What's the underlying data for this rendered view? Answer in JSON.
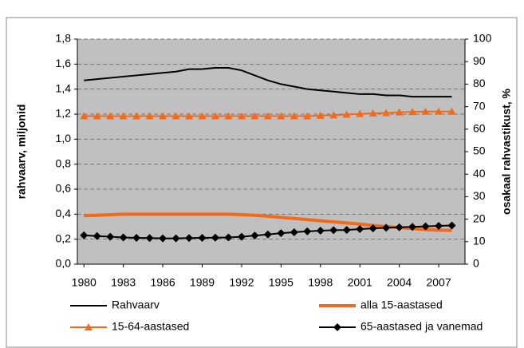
{
  "chart_data": {
    "type": "line",
    "ylabel": "rahvaarv, miljonid",
    "y2label": "osakaal rahvastikust, %",
    "x": [
      1980,
      1981,
      1982,
      1983,
      1984,
      1985,
      1986,
      1987,
      1988,
      1989,
      1990,
      1991,
      1992,
      1993,
      1994,
      1995,
      1996,
      1997,
      1998,
      1999,
      2000,
      2001,
      2002,
      2003,
      2004,
      2005,
      2006,
      2007,
      2008
    ],
    "xlim": [
      1979.5,
      2009
    ],
    "xticks": [
      1980,
      1983,
      1986,
      1989,
      1992,
      1995,
      1998,
      2001,
      2004,
      2007
    ],
    "ylim": [
      0,
      1.8
    ],
    "yticks": [
      {
        "value": 0,
        "label": "0,0"
      },
      {
        "value": 0.2,
        "label": "0,2"
      },
      {
        "value": 0.4,
        "label": "0,4"
      },
      {
        "value": 0.6,
        "label": "0,6"
      },
      {
        "value": 0.8,
        "label": "0,8"
      },
      {
        "value": 1.0,
        "label": "1,0"
      },
      {
        "value": 1.2,
        "label": "1,2"
      },
      {
        "value": 1.4,
        "label": "1,4"
      },
      {
        "value": 1.6,
        "label": "1,6"
      },
      {
        "value": 1.8,
        "label": "1,8"
      }
    ],
    "y2lim": [
      0,
      100
    ],
    "y2ticks": [
      0,
      10,
      20,
      30,
      40,
      50,
      60,
      70,
      80,
      90,
      100
    ],
    "grid": true,
    "series": [
      {
        "name": "Rahvaarv",
        "color": "#000000",
        "linewidth": 2,
        "marker": null,
        "values": [
          1.47,
          1.48,
          1.49,
          1.5,
          1.51,
          1.52,
          1.53,
          1.54,
          1.56,
          1.56,
          1.57,
          1.57,
          1.55,
          1.51,
          1.47,
          1.44,
          1.42,
          1.4,
          1.39,
          1.38,
          1.37,
          1.36,
          1.36,
          1.35,
          1.35,
          1.34,
          1.34,
          1.34,
          1.34
        ]
      },
      {
        "name": "alla 15-aastased",
        "color": "#f26a1b",
        "linewidth": 4,
        "marker": null,
        "axis": "y2",
        "values": [
          21.5,
          21.7,
          22,
          22.2,
          22.2,
          22.2,
          22.2,
          22.2,
          22.2,
          22.2,
          22.2,
          22.2,
          22,
          21.7,
          21.3,
          20.8,
          20.3,
          19.8,
          19.3,
          18.8,
          18.3,
          17.8,
          17.2,
          16.7,
          16.3,
          15.8,
          15.4,
          15.1,
          15.0
        ]
      },
      {
        "name": "15-64-aastased",
        "color": "#f26a1b",
        "linewidth": 2,
        "marker": "triangle",
        "axis": "y2",
        "values": [
          65.8,
          65.8,
          65.8,
          65.8,
          65.8,
          65.8,
          65.8,
          65.8,
          65.8,
          65.8,
          65.8,
          65.8,
          65.8,
          65.8,
          65.8,
          65.8,
          65.8,
          65.8,
          66,
          66.2,
          66.5,
          66.8,
          67,
          67.2,
          67.5,
          67.7,
          67.8,
          67.8,
          67.8
        ]
      },
      {
        "name": "65-aastased ja vanemad",
        "color": "#000000",
        "linewidth": 2,
        "marker": "diamond",
        "axis": "y2",
        "values": [
          12.8,
          12.5,
          12.2,
          11.9,
          11.7,
          11.6,
          11.5,
          11.5,
          11.6,
          11.7,
          11.8,
          11.9,
          12.2,
          12.7,
          13.2,
          13.8,
          14.2,
          14.6,
          14.9,
          15.1,
          15.2,
          15.6,
          15.9,
          16.2,
          16.4,
          16.6,
          16.8,
          17.0,
          17.2
        ]
      }
    ]
  }
}
